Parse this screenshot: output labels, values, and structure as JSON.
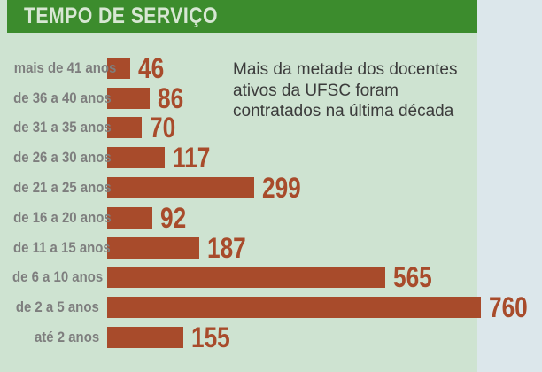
{
  "header": {
    "title": "TEMPO DE SERVIÇO"
  },
  "annotation": {
    "text": "Mais da metade dos docentes ativos da UFSC foram contratados na última década",
    "lines": [
      "Mais da metade dos docentes",
      "ativos da UFSC foram",
      "contratados na última década"
    ]
  },
  "chart_data": {
    "type": "bar",
    "orientation": "horizontal",
    "title": "TEMPO DE SERVIÇO",
    "categories": [
      "mais de 41 anos",
      "de 36 a 40 anos",
      "de 31 a 35 anos",
      "de 26 a 30 anos",
      "de 21 a 25 anos",
      "de 16 a 20 anos",
      "de 11 a 15 anos",
      "de 6 a 10 anos",
      "de 2 a 5 anos",
      "até 2 anos"
    ],
    "values": [
      46,
      86,
      70,
      117,
      299,
      92,
      187,
      565,
      760,
      155
    ],
    "xlim": [
      0,
      760
    ],
    "value_labels_shown": true,
    "grid": false,
    "legend_position": "none",
    "annotation": "Mais da metade dos docentes ativos da UFSC foram contratados na última década"
  },
  "colors": {
    "bg_outer": "#dce7eb",
    "bg_panel": "#cee3d1",
    "header_green": "#3c8c2d",
    "title_color": "#d7e7d3",
    "bar_color": "#a84b2b",
    "label_gray": "#7e7e7e",
    "annotation_color": "#3b3b3b"
  }
}
